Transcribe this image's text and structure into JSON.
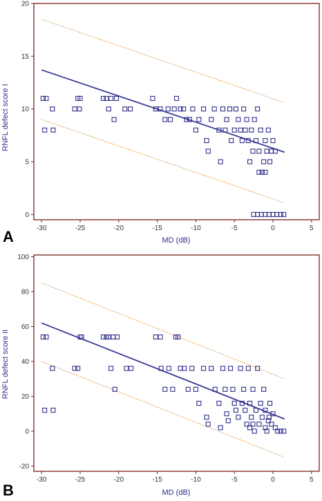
{
  "panels": [
    {
      "label": "A"
    },
    {
      "label": "B"
    }
  ],
  "chart_data": [
    {
      "type": "scatter",
      "title": "",
      "xlabel": "MD (dB)",
      "ylabel": "RNFL defect score I",
      "xlim": [
        -31,
        6
      ],
      "ylim": [
        -0.5,
        20
      ],
      "xticks": [
        -30,
        -25,
        -20,
        -15,
        -10,
        -5,
        0,
        5
      ],
      "yticks": [
        0,
        5,
        10,
        15,
        20
      ],
      "grid": false,
      "colors": {
        "points": "#2e2e8c",
        "fit": "#3a3a99",
        "ci": "#e08a30",
        "frame": "#7a1f1f"
      },
      "points": [
        [
          -29.8,
          11
        ],
        [
          -29.4,
          11
        ],
        [
          -29.6,
          8
        ],
        [
          -28.5,
          8
        ],
        [
          -28.6,
          10
        ],
        [
          -25.7,
          10
        ],
        [
          -25.3,
          11
        ],
        [
          -25.0,
          11
        ],
        [
          -25.1,
          10
        ],
        [
          -22.0,
          11
        ],
        [
          -21.6,
          11
        ],
        [
          -21.3,
          10
        ],
        [
          -21.0,
          11
        ],
        [
          -20.6,
          9
        ],
        [
          -20.3,
          11
        ],
        [
          -19.2,
          10
        ],
        [
          -18.5,
          10
        ],
        [
          -15.6,
          11
        ],
        [
          -15.2,
          10
        ],
        [
          -14.6,
          10
        ],
        [
          -14.0,
          9
        ],
        [
          -13.6,
          10
        ],
        [
          -13.3,
          9
        ],
        [
          -12.8,
          10
        ],
        [
          -12.5,
          11
        ],
        [
          -12.0,
          10
        ],
        [
          -11.6,
          10
        ],
        [
          -11.2,
          9
        ],
        [
          -10.8,
          9
        ],
        [
          -10.4,
          10
        ],
        [
          -10.0,
          8
        ],
        [
          -9.6,
          9
        ],
        [
          -9.0,
          10
        ],
        [
          -8.6,
          7
        ],
        [
          -8.4,
          6
        ],
        [
          -8.0,
          9
        ],
        [
          -7.6,
          10
        ],
        [
          -7.0,
          8
        ],
        [
          -6.8,
          5
        ],
        [
          -6.5,
          10
        ],
        [
          -6.2,
          8
        ],
        [
          -6.0,
          9
        ],
        [
          -5.6,
          10
        ],
        [
          -5.4,
          7
        ],
        [
          -5.0,
          8
        ],
        [
          -4.8,
          10
        ],
        [
          -4.5,
          9
        ],
        [
          -4.2,
          8
        ],
        [
          -4.0,
          7
        ],
        [
          -3.8,
          10
        ],
        [
          -3.6,
          8
        ],
        [
          -3.4,
          9
        ],
        [
          -3.2,
          7
        ],
        [
          -3.0,
          5
        ],
        [
          -2.8,
          8
        ],
        [
          -2.6,
          6
        ],
        [
          -2.4,
          9
        ],
        [
          -2.2,
          7
        ],
        [
          -2.0,
          10
        ],
        [
          -1.8,
          6
        ],
        [
          -1.6,
          8
        ],
        [
          -1.4,
          4
        ],
        [
          -1.2,
          5
        ],
        [
          -1.0,
          7
        ],
        [
          -0.8,
          6
        ],
        [
          -0.6,
          8
        ],
        [
          -0.4,
          5
        ],
        [
          -0.2,
          6
        ],
        [
          0.0,
          7
        ],
        [
          0.3,
          6
        ],
        [
          -1.8,
          4
        ],
        [
          -1.0,
          4
        ],
        [
          -2.5,
          0
        ],
        [
          -2.0,
          0
        ],
        [
          -1.5,
          0
        ],
        [
          -1.0,
          0
        ],
        [
          -0.5,
          0
        ],
        [
          0.0,
          0
        ],
        [
          0.5,
          0
        ],
        [
          1.0,
          0
        ],
        [
          1.4,
          0
        ]
      ],
      "fit_line": {
        "x": [
          -30,
          1.5
        ],
        "y": [
          13.7,
          5.9
        ]
      },
      "ci_upper": {
        "x": [
          -30,
          1.5
        ],
        "y": [
          18.5,
          10.6
        ]
      },
      "ci_lower": {
        "x": [
          -30,
          1.5
        ],
        "y": [
          9.0,
          1.1
        ]
      }
    },
    {
      "type": "scatter",
      "title": "",
      "xlabel": "MD (dB)",
      "ylabel": "RNFL defect score II",
      "xlim": [
        -31,
        6
      ],
      "ylim": [
        -23,
        101
      ],
      "xticks": [
        -30,
        -25,
        -20,
        -15,
        -10,
        -5,
        0,
        5
      ],
      "yticks": [
        -20,
        0,
        20,
        40,
        60,
        80,
        100
      ],
      "grid": false,
      "colors": {
        "points": "#2e2e8c",
        "fit": "#3a3a99",
        "ci": "#e08a30",
        "frame": "#7a1f1f"
      },
      "points": [
        [
          -29.8,
          54
        ],
        [
          -29.4,
          54
        ],
        [
          -29.6,
          12
        ],
        [
          -28.5,
          12
        ],
        [
          -28.6,
          36
        ],
        [
          -25.7,
          36
        ],
        [
          -25.3,
          36
        ],
        [
          -25.0,
          54
        ],
        [
          -24.8,
          54
        ],
        [
          -22.0,
          54
        ],
        [
          -21.6,
          54
        ],
        [
          -21.3,
          54
        ],
        [
          -21.0,
          36
        ],
        [
          -20.7,
          54
        ],
        [
          -20.5,
          24
        ],
        [
          -20.2,
          54
        ],
        [
          -19.0,
          36
        ],
        [
          -18.4,
          36
        ],
        [
          -15.2,
          54
        ],
        [
          -14.6,
          54
        ],
        [
          -14.5,
          36
        ],
        [
          -14.0,
          24
        ],
        [
          -13.5,
          36
        ],
        [
          -13.0,
          24
        ],
        [
          -12.6,
          54
        ],
        [
          -12.3,
          54
        ],
        [
          -12.0,
          36
        ],
        [
          -11.5,
          36
        ],
        [
          -11.0,
          24
        ],
        [
          -10.5,
          36
        ],
        [
          -10.0,
          24
        ],
        [
          -9.6,
          16
        ],
        [
          -9.0,
          36
        ],
        [
          -8.6,
          8
        ],
        [
          -8.4,
          4
        ],
        [
          -8.0,
          36
        ],
        [
          -7.5,
          24
        ],
        [
          -7.0,
          16
        ],
        [
          -6.8,
          2
        ],
        [
          -6.5,
          36
        ],
        [
          -6.2,
          24
        ],
        [
          -6.0,
          10
        ],
        [
          -5.8,
          6
        ],
        [
          -5.5,
          36
        ],
        [
          -5.2,
          24
        ],
        [
          -5.0,
          16
        ],
        [
          -4.8,
          12
        ],
        [
          -4.5,
          8
        ],
        [
          -4.2,
          36
        ],
        [
          -4.0,
          16
        ],
        [
          -3.8,
          24
        ],
        [
          -3.6,
          12
        ],
        [
          -3.4,
          4
        ],
        [
          -3.2,
          36
        ],
        [
          -3.0,
          16
        ],
        [
          -2.8,
          8
        ],
        [
          -2.6,
          24
        ],
        [
          -2.4,
          0
        ],
        [
          -2.2,
          12
        ],
        [
          -2.0,
          36
        ],
        [
          -1.8,
          4
        ],
        [
          -1.6,
          16
        ],
        [
          -1.4,
          8
        ],
        [
          -1.2,
          24
        ],
        [
          -1.0,
          12
        ],
        [
          -0.8,
          0
        ],
        [
          -0.6,
          6
        ],
        [
          -0.4,
          16
        ],
        [
          -0.2,
          4
        ],
        [
          0.0,
          10
        ],
        [
          0.3,
          2
        ],
        [
          0.6,
          0
        ],
        [
          1.0,
          0
        ],
        [
          1.4,
          0
        ],
        [
          -2.6,
          4
        ],
        [
          -3.0,
          2
        ],
        [
          -1.0,
          2
        ],
        [
          -0.5,
          8
        ]
      ],
      "fit_line": {
        "x": [
          -30,
          1.5
        ],
        "y": [
          62,
          7
        ]
      },
      "ci_upper": {
        "x": [
          -30,
          1.5
        ],
        "y": [
          85,
          30
        ]
      },
      "ci_lower": {
        "x": [
          -30,
          1.5
        ],
        "y": [
          40,
          -15
        ]
      }
    }
  ]
}
